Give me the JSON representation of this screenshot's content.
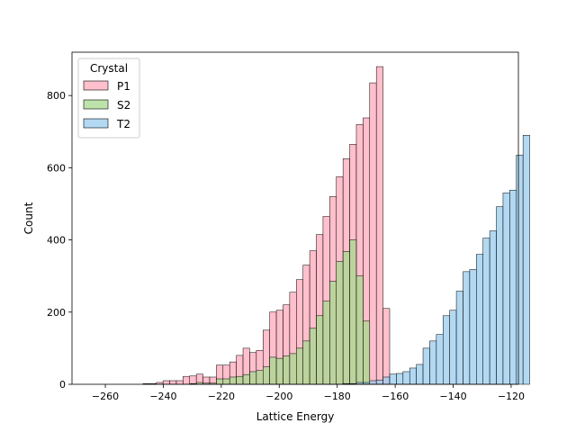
{
  "chart_data": {
    "type": "histogram",
    "title": "",
    "xlabel": "Lattice Energy",
    "ylabel": "Count",
    "xlim": [
      -271.5,
      -117.5
    ],
    "ylim": [
      0,
      920
    ],
    "xticks": [
      -260,
      -240,
      -220,
      -200,
      -180,
      -160,
      -140,
      -120
    ],
    "yticks": [
      0,
      200,
      400,
      600,
      800
    ],
    "bin_width": 2.3,
    "grid": false,
    "legend": {
      "title": "Crystal",
      "position": "top-left"
    },
    "series": [
      {
        "name": "P1",
        "color": "#ffaabb",
        "bin_start": -247.0,
        "values": [
          2,
          2,
          5,
          10,
          10,
          10,
          22,
          23,
          28,
          20,
          20,
          53,
          53,
          62,
          80,
          100,
          88,
          94,
          150,
          200,
          205,
          220,
          255,
          290,
          330,
          370,
          415,
          465,
          520,
          575,
          625,
          665,
          720,
          738,
          835,
          880,
          210
        ]
      },
      {
        "name": "S2",
        "color": "#a7d98f",
        "bin_start": -247.0,
        "values": [
          0,
          0,
          0,
          0,
          0,
          0,
          0,
          2,
          5,
          3,
          3,
          15,
          15,
          20,
          22,
          27,
          35,
          38,
          48,
          75,
          72,
          78,
          85,
          100,
          120,
          155,
          190,
          230,
          285,
          340,
          368,
          400,
          300,
          175,
          0,
          0,
          0
        ]
      },
      {
        "name": "T2",
        "color": "#99ccee",
        "bin_start": -178.0,
        "values": [
          2,
          2,
          5,
          5,
          10,
          12,
          20,
          28,
          30,
          35,
          45,
          55,
          100,
          120,
          138,
          190,
          205,
          258,
          312,
          318,
          360,
          405,
          425,
          492,
          530,
          538,
          635,
          690
        ]
      }
    ]
  }
}
